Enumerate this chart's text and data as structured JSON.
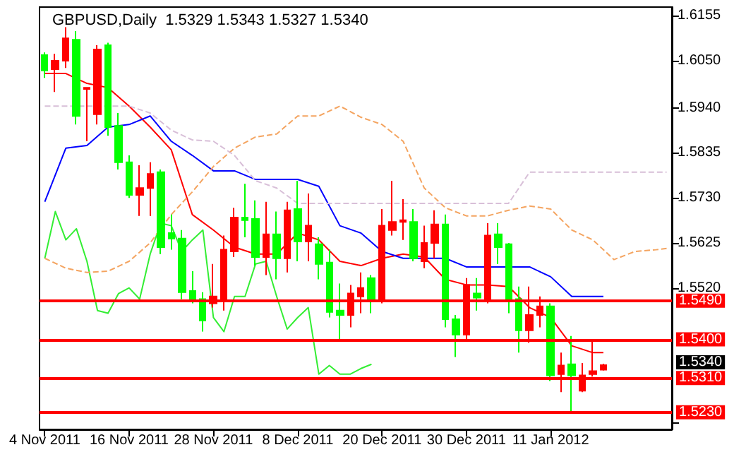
{
  "chart_data": {
    "type": "candlestick",
    "title": "GBPUSD,Daily  1.5329 1.5343 1.5327 1.5340",
    "categories": [
      "4 Nov 2011",
      null,
      null,
      null,
      null,
      null,
      null,
      null,
      "16 Nov 2011",
      null,
      null,
      null,
      null,
      null,
      null,
      null,
      "28 Nov 2011",
      null,
      null,
      null,
      null,
      null,
      null,
      null,
      "8 Dec 2011",
      null,
      null,
      null,
      null,
      null,
      null,
      null,
      "20 Dec 2011",
      null,
      null,
      null,
      null,
      null,
      null,
      null,
      "30 Dec 2011",
      null,
      null,
      null,
      null,
      null,
      null,
      null,
      "11 Jan 2012",
      null,
      null,
      null,
      null,
      null,
      null,
      null,
      null,
      null,
      null,
      null
    ],
    "ohlc": [
      [
        1.6027,
        1.6069,
        1.601,
        1.6063
      ],
      [
        1.605,
        1.6066,
        1.5977,
        1.603
      ],
      [
        1.6102,
        1.6128,
        1.6033,
        1.605
      ],
      [
        1.5921,
        1.6119,
        1.5901,
        1.6099
      ],
      [
        1.5987,
        1.5987,
        1.5862,
        1.5984
      ],
      [
        1.6076,
        1.6086,
        1.5901,
        1.5925
      ],
      [
        1.5895,
        1.6092,
        1.5875,
        1.6086
      ],
      [
        1.5813,
        1.5928,
        1.5796,
        1.5898
      ],
      [
        1.5737,
        1.5829,
        1.573,
        1.5813
      ],
      [
        1.5753,
        1.5806,
        1.5688,
        1.5737
      ],
      [
        1.5786,
        1.5813,
        1.5688,
        1.5753
      ],
      [
        1.5615,
        1.5796,
        1.5599,
        1.579
      ],
      [
        1.5635,
        1.5691,
        1.5609,
        1.5648
      ],
      [
        1.551,
        1.5655,
        1.5494,
        1.5635
      ],
      [
        1.5494,
        1.5559,
        1.5484,
        1.5513
      ],
      [
        1.5444,
        1.551,
        1.5418,
        1.5494
      ],
      [
        1.55,
        1.5576,
        1.5474,
        1.5484
      ],
      [
        1.5609,
        1.5642,
        1.5467,
        1.5494
      ],
      [
        1.5684,
        1.5707,
        1.5592,
        1.5605
      ],
      [
        1.5678,
        1.5763,
        1.5638,
        1.5684
      ],
      [
        1.5592,
        1.5724,
        1.5572,
        1.5681
      ],
      [
        1.5645,
        1.5721,
        1.555,
        1.5592
      ],
      [
        1.5589,
        1.5698,
        1.554,
        1.5645
      ],
      [
        1.5701,
        1.5721,
        1.5556,
        1.5589
      ],
      [
        1.5628,
        1.577,
        1.5582,
        1.5704
      ],
      [
        1.5665,
        1.574,
        1.5582,
        1.5628
      ],
      [
        1.5576,
        1.5638,
        1.554,
        1.5622
      ],
      [
        1.5464,
        1.5609,
        1.5451,
        1.5579
      ],
      [
        1.5457,
        1.553,
        1.5401,
        1.5467
      ],
      [
        1.5507,
        1.5527,
        1.5428,
        1.5457
      ],
      [
        1.552,
        1.5556,
        1.5461,
        1.55
      ],
      [
        1.549,
        1.555,
        1.5461,
        1.5543
      ],
      [
        1.5665,
        1.5704,
        1.5484,
        1.549
      ],
      [
        1.5674,
        1.577,
        1.5642,
        1.5655
      ],
      [
        1.5678,
        1.5727,
        1.5632,
        1.5674
      ],
      [
        1.5589,
        1.5704,
        1.5582,
        1.5674
      ],
      [
        1.5625,
        1.5665,
        1.5566,
        1.5582
      ],
      [
        1.5668,
        1.5701,
        1.5589,
        1.5625
      ],
      [
        1.5447,
        1.5691,
        1.5428,
        1.5668
      ],
      [
        1.5411,
        1.5457,
        1.5359,
        1.5447
      ],
      [
        1.5527,
        1.5543,
        1.5401,
        1.5411
      ],
      [
        1.5497,
        1.5543,
        1.5467,
        1.5507
      ],
      [
        1.5642,
        1.5671,
        1.5484,
        1.549
      ],
      [
        1.5615,
        1.5671,
        1.5576,
        1.5645
      ],
      [
        1.5494,
        1.5625,
        1.5461,
        1.5622
      ],
      [
        1.5421,
        1.5523,
        1.5369,
        1.5494
      ],
      [
        1.5457,
        1.5523,
        1.5392,
        1.5421
      ],
      [
        1.5477,
        1.55,
        1.5428,
        1.5457
      ],
      [
        1.5316,
        1.5484,
        1.5303,
        1.5477
      ],
      [
        1.5339,
        1.5369,
        1.5277,
        1.5319
      ],
      [
        1.5316,
        1.5408,
        1.5231,
        1.5342
      ],
      [
        1.5316,
        1.5345,
        1.5277,
        1.528
      ],
      [
        1.5326,
        1.5395,
        1.5313,
        1.5319
      ],
      [
        1.5329,
        1.5343,
        1.5327,
        1.534
      ],
      null,
      null,
      null,
      null,
      null,
      null
    ],
    "colors": [
      "#00ff00",
      "#ff0000",
      "#ff0000",
      "#00ff00",
      "#ff0000",
      "#ff0000",
      "#00ff00",
      "#00ff00",
      "#00ff00",
      "#ff0000",
      "#ff0000",
      "#00ff00",
      "#00ff00",
      "#00ff00",
      "#00ff00",
      "#00ff00",
      "#ff0000",
      "#ff0000",
      "#ff0000",
      "#00ff00",
      "#00ff00",
      "#ff0000",
      "#00ff00",
      "#ff0000",
      "#00ff00",
      "#ff0000",
      "#00ff00",
      "#00ff00",
      "#00ff00",
      "#ff0000",
      "#ff0000",
      "#00ff00",
      "#ff0000",
      "#ff0000",
      "#ff0000",
      "#00ff00",
      "#ff0000",
      "#ff0000",
      "#00ff00",
      "#00ff00",
      "#ff0000",
      "#00ff00",
      "#ff0000",
      "#00ff00",
      "#00ff00",
      "#00ff00",
      "#ff0000",
      "#ff0000",
      "#00ff00",
      "#ff0000",
      "#00ff00",
      "#ff0000",
      "#ff0000",
      "#ff0000",
      null,
      null,
      null,
      null,
      null,
      null
    ],
    "series": [
      {
        "type": "line",
        "color": "#ff0000",
        "line_style": "solid",
        "values": [
          1.602,
          null,
          1.602,
          null,
          1.5997,
          null,
          1.5987,
          null,
          1.5944,
          null,
          1.5895,
          null,
          1.5842,
          null,
          1.5691,
          null,
          1.5655,
          null,
          1.5615,
          null,
          1.5599,
          null,
          1.5599,
          null,
          1.5648,
          null,
          1.5632,
          null,
          1.5582,
          null,
          1.5572,
          null,
          1.5589,
          null,
          1.5599,
          null,
          1.5592,
          null,
          1.554,
          null,
          1.5527,
          null,
          1.5527,
          null,
          1.5523,
          null,
          1.5474,
          null,
          1.5451,
          null,
          1.5385,
          null,
          1.5369,
          1.5369,
          null,
          null,
          null,
          null,
          null,
          null
        ]
      },
      {
        "type": "line",
        "color": "#0000ff",
        "line_style": "solid",
        "values": [
          1.5721,
          null,
          1.5846,
          null,
          1.5852,
          null,
          1.5895,
          null,
          1.5901,
          null,
          1.5921,
          null,
          1.5862,
          null,
          1.5829,
          null,
          1.5793,
          null,
          1.5793,
          null,
          1.5773,
          null,
          1.5773,
          null,
          1.5773,
          null,
          1.5757,
          null,
          1.5665,
          null,
          1.5648,
          null,
          1.5605,
          null,
          1.5589,
          null,
          1.5589,
          null,
          1.5589,
          null,
          1.5569,
          null,
          1.5569,
          null,
          1.5569,
          null,
          1.5569,
          null,
          1.5546,
          null,
          1.55,
          null,
          1.55,
          1.55,
          null,
          null,
          null,
          null,
          null,
          null
        ]
      },
      {
        "type": "line",
        "color": "#33ee33",
        "line_style": "solid",
        "values": [
          1.5589,
          1.5698,
          1.5632,
          1.5658,
          1.5582,
          1.5467,
          1.5461,
          1.5507,
          1.552,
          1.5494,
          1.5599,
          1.5671,
          1.5665,
          1.5605,
          1.5632,
          1.5655,
          1.5451,
          1.5418,
          1.55,
          1.55,
          1.5576,
          1.5582,
          1.55,
          1.5424,
          1.5451,
          1.5474,
          1.5319,
          1.5339,
          1.5319,
          1.5319,
          1.5332,
          1.5342,
          null,
          null,
          null,
          null,
          null,
          null,
          null,
          null,
          null,
          null,
          null,
          null,
          null,
          null,
          null,
          null,
          null,
          null,
          null,
          null,
          null,
          null,
          null,
          null,
          null,
          null,
          null,
          null
        ]
      },
      {
        "type": "line",
        "color": "#f4a460",
        "line_style": "dashed",
        "values": [
          1.5589,
          null,
          1.5566,
          null,
          1.5556,
          null,
          1.5559,
          null,
          1.5582,
          null,
          1.5625,
          null,
          1.5691,
          null,
          1.5744,
          null,
          1.5803,
          null,
          1.5846,
          null,
          1.5872,
          null,
          1.5879,
          null,
          1.5921,
          null,
          1.5921,
          null,
          1.5944,
          null,
          1.5918,
          null,
          1.5901,
          null,
          1.5862,
          null,
          1.5753,
          null,
          1.5707,
          null,
          1.5688,
          null,
          1.5688,
          null,
          1.5701,
          null,
          1.5711,
          null,
          1.5704,
          null,
          1.5655,
          null,
          1.5632,
          null,
          1.5586,
          null,
          1.5605,
          null,
          1.5609,
          1.5612
        ]
      },
      {
        "type": "line",
        "color": "#d8bfd8",
        "line_style": "dashed",
        "values": [
          1.5944,
          null,
          1.5944,
          null,
          1.5944,
          null,
          1.5944,
          null,
          1.5944,
          null,
          1.5928,
          null,
          1.5888,
          null,
          1.5865,
          null,
          1.5862,
          null,
          1.5829,
          null,
          1.577,
          null,
          1.5753,
          null,
          1.5717,
          null,
          1.5717,
          null,
          1.5717,
          null,
          1.5717,
          null,
          1.5717,
          null,
          1.5717,
          null,
          1.5717,
          null,
          1.5717,
          null,
          1.5717,
          null,
          1.5717,
          null,
          1.5717,
          null,
          1.579,
          null,
          1.579,
          null,
          1.579,
          null,
          1.579,
          null,
          1.579,
          null,
          1.579,
          null,
          1.579,
          1.579
        ]
      }
    ],
    "ylim": [
      1.519,
      1.6175
    ],
    "yticks": [
      1.6155,
      {
        "value": 1.605,
        "label": "1.6050"
      },
      {
        "value": 1.594,
        "label": "1.5940"
      },
      1.5835,
      {
        "value": 1.573,
        "label": "1.5730"
      },
      1.5625,
      {
        "value": 1.552,
        "label": "1.5520"
      },
      {
        "value": 1.5205,
        "label": null
      }
    ],
    "ref_lines": [
      {
        "axis": "y",
        "value": 1.549,
        "label": "1.5490",
        "color": "#ff0000"
      },
      {
        "axis": "y",
        "value": 1.54,
        "label": "1.5400",
        "color": "#ff0000"
      },
      {
        "axis": "y",
        "value": 1.531,
        "label": "1.5310",
        "color": "#ff0000"
      },
      {
        "axis": "y",
        "value": 1.523,
        "label": "1.5230",
        "color": "#ff0000"
      }
    ],
    "annotations": [
      "1.5340"
    ],
    "grid": false,
    "marker": "none"
  }
}
